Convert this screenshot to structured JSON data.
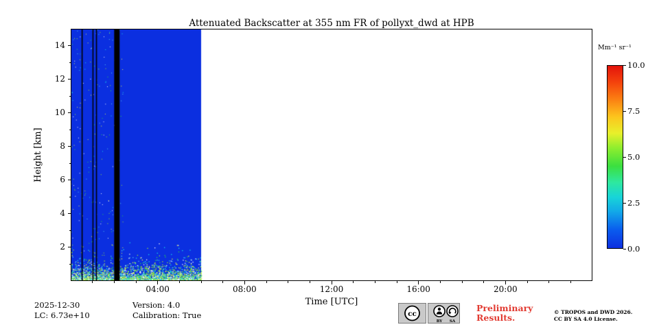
{
  "chart_data": {
    "type": "heatmap",
    "title": "Attenuated Backscatter at 355 nm FR of pollyxt_dwd at HPB",
    "xlabel": "Time [UTC]",
    "ylabel": "Height [km]",
    "xlim_hours": [
      0,
      24
    ],
    "x_tick_labels": [
      "04:00",
      "08:00",
      "12:00",
      "16:00",
      "20:00"
    ],
    "x_tick_hours": [
      4,
      8,
      12,
      16,
      20
    ],
    "ylim_km": [
      0,
      15
    ],
    "y_tick_labels": [
      "2",
      "4",
      "6",
      "8",
      "10",
      "12",
      "14"
    ],
    "y_tick_km": [
      2,
      4,
      6,
      8,
      10,
      12,
      14
    ],
    "colorbar": {
      "label": "Mm⁻¹ sr⁻¹",
      "min": 0.0,
      "max": 10.0,
      "tick_labels": [
        "0.0",
        "2.5",
        "5.0",
        "7.5",
        "10.0"
      ],
      "colormap": "jet-like",
      "gradient": [
        {
          "pos": 0,
          "color": "#0d2fe0"
        },
        {
          "pos": 10,
          "color": "#0a5cee"
        },
        {
          "pos": 20,
          "color": "#12a8e8"
        },
        {
          "pos": 28,
          "color": "#18d4d8"
        },
        {
          "pos": 36,
          "color": "#2ee8a0"
        },
        {
          "pos": 45,
          "color": "#3bdf3f"
        },
        {
          "pos": 55,
          "color": "#8fee2e"
        },
        {
          "pos": 63,
          "color": "#e8f02b"
        },
        {
          "pos": 72,
          "color": "#fcc51d"
        },
        {
          "pos": 82,
          "color": "#fb7d12"
        },
        {
          "pos": 91,
          "color": "#f4420c"
        },
        {
          "pos": 100,
          "color": "#e3130b"
        }
      ]
    },
    "coverage": {
      "data_start_hour": 0,
      "data_end_hour": 6,
      "dominant_value": 0.0,
      "description": "Near-zero attenuated backscatter (~0 Mm-1 sr-1, blue) from 00:00 to 06:00 over 0-15 km; speckled enhanced signal below ~1.5 km near the surface; white (no data) after 06:00; black vertical calibration gaps near 00:30-02:15"
    },
    "calibration_lines_hours": [
      [
        0.5,
        0.55
      ],
      [
        1.0,
        1.05
      ],
      [
        1.16,
        1.21
      ],
      [
        2.0,
        2.25
      ]
    ],
    "colors": {
      "background_blue": "#0b2fe0",
      "speckles": [
        "#ffffff",
        "#19dce8",
        "#2ed34b",
        "#9fe832",
        "#e8f046",
        "#54c9f0"
      ]
    }
  },
  "footer": {
    "date": "2025-12-30",
    "lidar_constant": "LC: 6.73e+10",
    "version": "Version: 4.0",
    "calibration": "Calibration: True",
    "preliminary": [
      "Preliminary",
      "Results."
    ],
    "preliminary_color": "#e23b32",
    "copyright": [
      "© TROPOS and DWD 2026.",
      "CC BY SA 4.0 License."
    ],
    "license_badge": {
      "cc": "cc",
      "by": "BY",
      "sa": "SA"
    }
  }
}
